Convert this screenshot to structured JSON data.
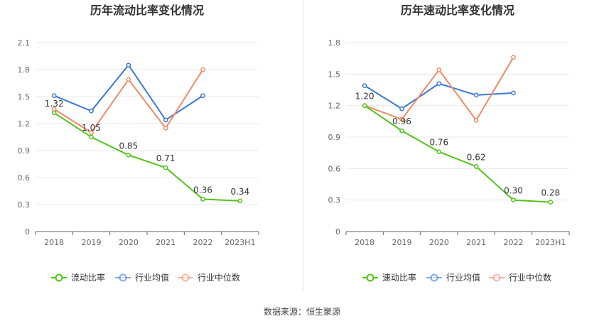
{
  "chart_data": [
    {
      "type": "line",
      "title": "历年流动比率变化情况",
      "categories": [
        "2018",
        "2019",
        "2020",
        "2021",
        "2022",
        "2023H1"
      ],
      "ylim": [
        0,
        2.1
      ],
      "yticks": [
        "0",
        "0.3",
        "0.6",
        "0.9",
        "1.2",
        "1.5",
        "1.8",
        "2.1"
      ],
      "series": [
        {
          "name": "流动比率",
          "color": "#52c41a",
          "values": [
            1.32,
            1.05,
            0.85,
            0.71,
            0.36,
            0.34
          ],
          "labels": [
            "1.32",
            "1.05",
            "0.85",
            "0.71",
            "0.36",
            "0.34"
          ]
        },
        {
          "name": "行业均值",
          "color": "#3a78d8",
          "values": [
            1.51,
            1.34,
            1.85,
            1.24,
            1.51,
            null
          ]
        },
        {
          "name": "行业中位数",
          "color": "#f08a66",
          "values": [
            1.36,
            1.1,
            1.69,
            1.15,
            1.8,
            null
          ]
        }
      ]
    },
    {
      "type": "line",
      "title": "历年速动比率变化情况",
      "categories": [
        "2018",
        "2019",
        "2020",
        "2021",
        "2022",
        "2023H1"
      ],
      "ylim": [
        0,
        1.8
      ],
      "yticks": [
        "0",
        "0.3",
        "0.6",
        "0.9",
        "1.2",
        "1.5",
        "1.8"
      ],
      "series": [
        {
          "name": "速动比率",
          "color": "#52c41a",
          "values": [
            1.2,
            0.96,
            0.76,
            0.62,
            0.3,
            0.28
          ],
          "labels": [
            "1.20",
            "0.96",
            "0.76",
            "0.62",
            "0.30",
            "0.28"
          ]
        },
        {
          "name": "行业均值",
          "color": "#3a78d8",
          "values": [
            1.39,
            1.17,
            1.41,
            1.3,
            1.32,
            null
          ]
        },
        {
          "name": "行业中位数",
          "color": "#f08a66",
          "values": [
            1.2,
            1.07,
            1.54,
            1.06,
            1.66,
            null
          ]
        }
      ]
    }
  ],
  "footer": {
    "source": "数据来源：恒生聚源"
  }
}
